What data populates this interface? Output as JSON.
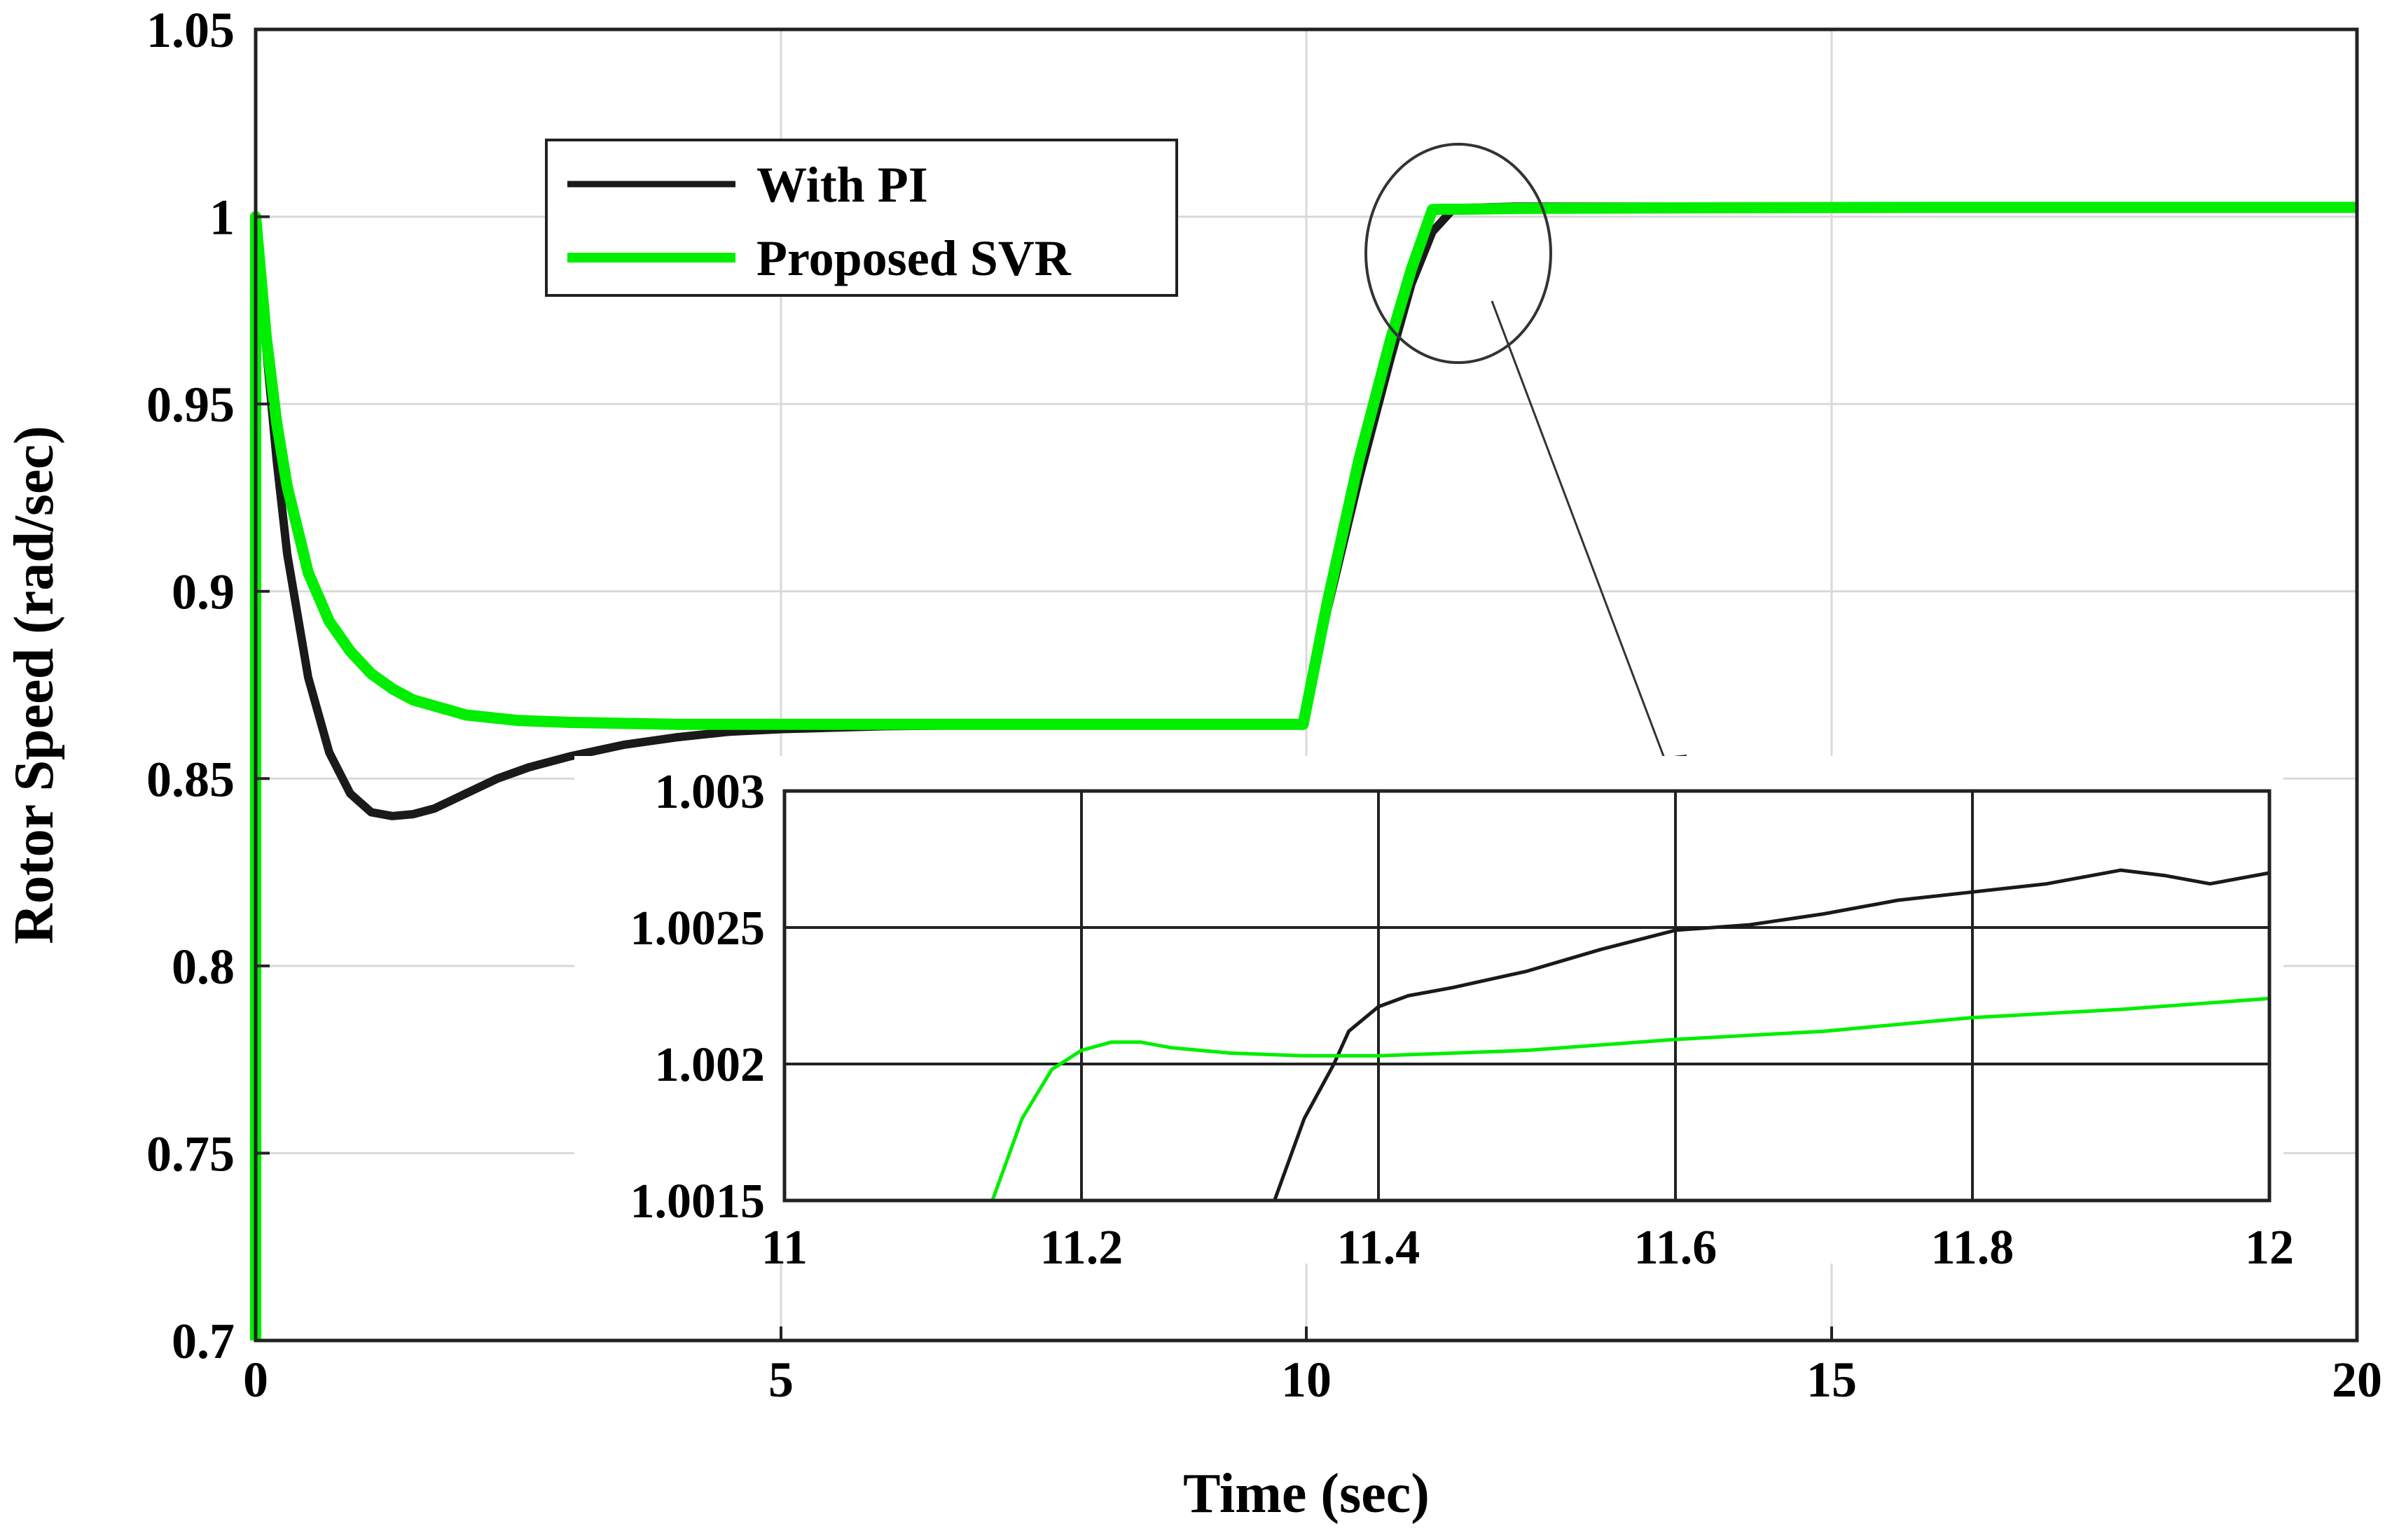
{
  "chart_data": [
    {
      "type": "line",
      "id": "main",
      "xlabel": "Time (sec)",
      "ylabel": "Rotor Speed (rad/sec)",
      "xlim": [
        0,
        20
      ],
      "ylim": [
        0.7,
        1.05
      ],
      "xticks": [
        0,
        5,
        10,
        15,
        20
      ],
      "xtick_labels": [
        "0",
        "5",
        "10",
        "15",
        "20"
      ],
      "yticks": [
        0.7,
        0.75,
        0.8,
        0.85,
        0.9,
        0.95,
        1.0,
        1.05
      ],
      "ytick_labels": [
        "0.7",
        "0.75",
        "0.8",
        "0.85",
        "0.9",
        "0.95",
        "1",
        "1.05"
      ],
      "grid": true,
      "legend": {
        "placement": "upper-left",
        "entries": [
          {
            "name": "With PI",
            "color": "#1a1a1a"
          },
          {
            "name": "Proposed SVR",
            "color": "#00ee00"
          }
        ]
      },
      "series": [
        {
          "name": "With PI",
          "color": "#1a1a1a",
          "x": [
            0,
            0.1,
            0.2,
            0.3,
            0.5,
            0.7,
            0.9,
            1.1,
            1.3,
            1.5,
            1.7,
            2.0,
            2.3,
            2.6,
            3.0,
            3.5,
            4.0,
            4.5,
            5.0,
            6.0,
            7.0,
            8.0,
            9.0,
            9.97,
            10.2,
            10.5,
            10.8,
            11.0,
            11.2,
            11.4,
            11.6,
            12,
            14,
            16,
            18,
            20
          ],
          "y": [
            1.0,
            0.965,
            0.935,
            0.91,
            0.877,
            0.857,
            0.846,
            0.841,
            0.84,
            0.8405,
            0.842,
            0.846,
            0.85,
            0.853,
            0.856,
            0.859,
            0.861,
            0.8625,
            0.8632,
            0.864,
            0.8643,
            0.8644,
            0.8645,
            0.8645,
            0.895,
            0.93,
            0.962,
            0.982,
            0.996,
            1.0021,
            1.0024,
            1.0027,
            1.0027,
            1.0026,
            1.0026,
            1.0026
          ]
        },
        {
          "name": "Proposed SVR",
          "color": "#00ee00",
          "x": [
            0,
            0.1,
            0.2,
            0.3,
            0.5,
            0.7,
            0.9,
            1.1,
            1.3,
            1.5,
            2.0,
            2.5,
            3.0,
            4.0,
            5.0,
            6.0,
            7.0,
            8.0,
            9.0,
            9.97,
            10.2,
            10.5,
            10.8,
            11.0,
            11.2,
            11.3,
            11.5,
            12,
            14,
            16,
            18,
            20
          ],
          "y": [
            1.0,
            0.968,
            0.945,
            0.928,
            0.905,
            0.892,
            0.884,
            0.878,
            0.874,
            0.871,
            0.867,
            0.8655,
            0.865,
            0.8645,
            0.8645,
            0.8645,
            0.8645,
            0.8645,
            0.8645,
            0.8645,
            0.897,
            0.935,
            0.967,
            0.986,
            1.0019,
            1.002,
            1.002,
            1.0022,
            1.0024,
            1.0025,
            1.0025,
            1.0025
          ]
        }
      ],
      "annotations": [
        "zoom circle around t≈11.4, speed≈1.0 with arrow to inset"
      ]
    },
    {
      "type": "line",
      "id": "inset",
      "xlim": [
        11,
        12
      ],
      "ylim": [
        1.0015,
        1.003
      ],
      "xticks": [
        11,
        11.2,
        11.4,
        11.6,
        11.8,
        12
      ],
      "xtick_labels": [
        "11",
        "11.2",
        "11.4",
        "11.6",
        "11.8",
        "12"
      ],
      "yticks": [
        1.0015,
        1.002,
        1.0025,
        1.003
      ],
      "ytick_labels": [
        "1.0015",
        "1.002",
        "1.0025",
        "1.003"
      ],
      "grid": true,
      "series": [
        {
          "name": "With PI",
          "color": "#1a1a1a",
          "x": [
            11.33,
            11.35,
            11.37,
            11.38,
            11.4,
            11.42,
            11.45,
            11.5,
            11.55,
            11.6,
            11.65,
            11.7,
            11.75,
            11.8,
            11.85,
            11.9,
            11.93,
            11.96,
            12.0
          ],
          "y": [
            1.0015,
            1.0018,
            1.002,
            1.00212,
            1.00221,
            1.00225,
            1.00228,
            1.00234,
            1.00242,
            1.00249,
            1.00251,
            1.00255,
            1.0026,
            1.00263,
            1.00266,
            1.00271,
            1.00269,
            1.00266,
            1.0027
          ]
        },
        {
          "name": "Proposed SVR",
          "color": "#00ee00",
          "x": [
            11.14,
            11.16,
            11.18,
            11.2,
            11.22,
            11.24,
            11.26,
            11.3,
            11.35,
            11.4,
            11.5,
            11.6,
            11.7,
            11.8,
            11.9,
            12.0
          ],
          "y": [
            1.0015,
            1.0018,
            1.00198,
            1.00205,
            1.00208,
            1.00208,
            1.00206,
            1.00204,
            1.00203,
            1.00203,
            1.00205,
            1.00209,
            1.00212,
            1.00217,
            1.0022,
            1.00224
          ]
        }
      ]
    }
  ]
}
